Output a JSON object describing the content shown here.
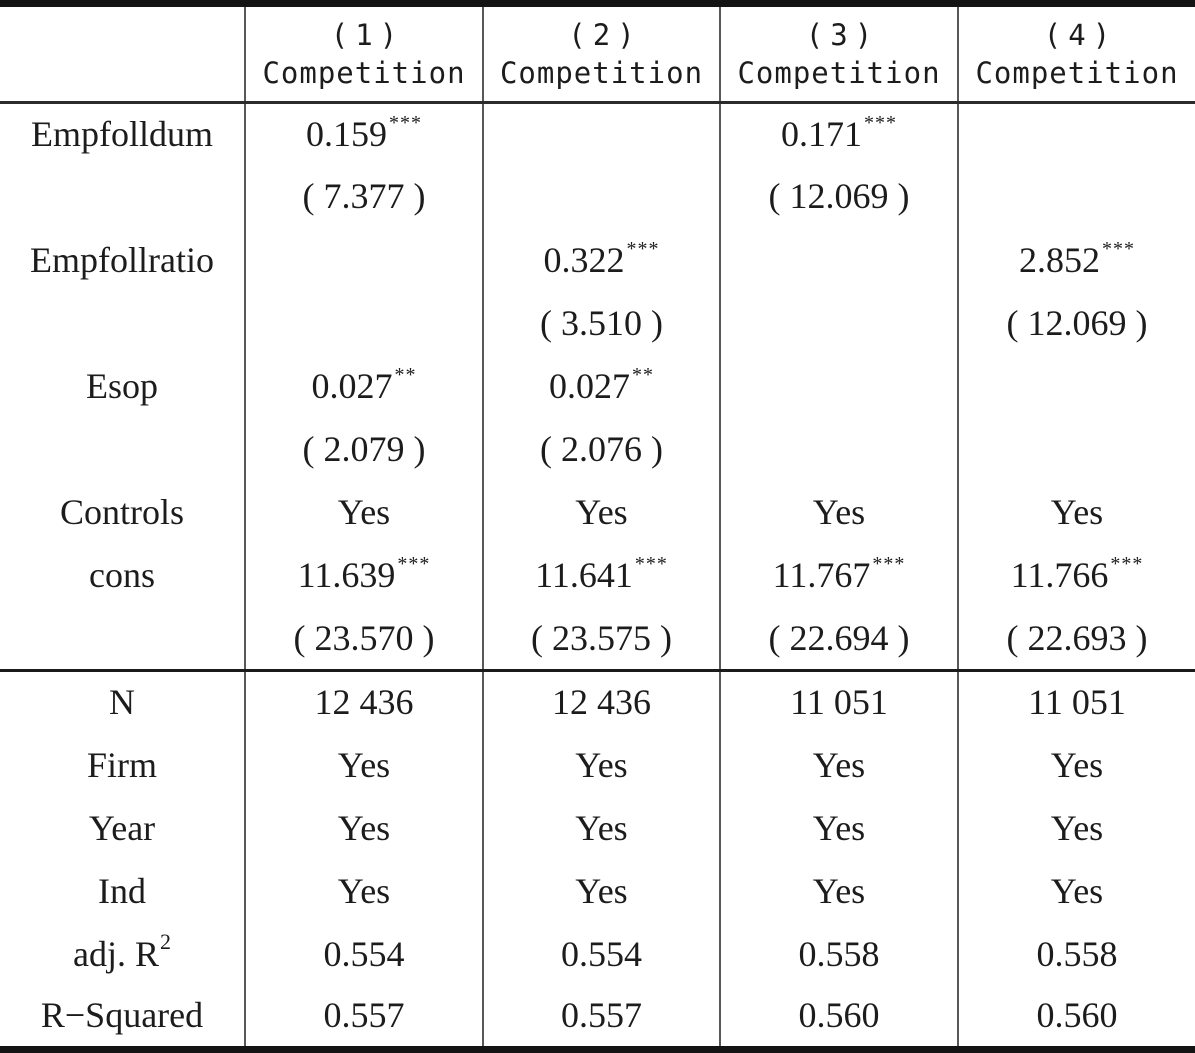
{
  "colors": {
    "ink": "#1c1c1c",
    "grid_vertical": "#585858",
    "rule_thick": "#141414",
    "rule_thin": "#2b2b2b"
  },
  "table": {
    "columns": [
      {
        "num": "(1)",
        "label": "Competition"
      },
      {
        "num": "(2)",
        "label": "Competition"
      },
      {
        "num": "(3)",
        "label": "Competition"
      },
      {
        "num": "(4)",
        "label": "Competition"
      }
    ],
    "rows": [
      {
        "label": "Empfolldum",
        "cells": [
          {
            "v": "0.159",
            "sup": "***"
          },
          {
            "v": ""
          },
          {
            "v": "0.171",
            "sup": "***"
          },
          {
            "v": ""
          }
        ]
      },
      {
        "label": "",
        "cells": [
          {
            "v": "( 7.377 )"
          },
          {
            "v": ""
          },
          {
            "v": "( 12.069 )"
          },
          {
            "v": ""
          }
        ]
      },
      {
        "label": "Empfollratio",
        "cells": [
          {
            "v": ""
          },
          {
            "v": "0.322",
            "sup": "***"
          },
          {
            "v": ""
          },
          {
            "v": "2.852",
            "sup": "***"
          }
        ]
      },
      {
        "label": "",
        "cells": [
          {
            "v": ""
          },
          {
            "v": "( 3.510 )"
          },
          {
            "v": ""
          },
          {
            "v": "( 12.069 )"
          }
        ]
      },
      {
        "label": "Esop",
        "cells": [
          {
            "v": "0.027",
            "sup": "**"
          },
          {
            "v": "0.027",
            "sup": "**"
          },
          {
            "v": ""
          },
          {
            "v": ""
          }
        ]
      },
      {
        "label": "",
        "cells": [
          {
            "v": "( 2.079 )"
          },
          {
            "v": "( 2.076 )"
          },
          {
            "v": ""
          },
          {
            "v": ""
          }
        ]
      },
      {
        "label": "Controls",
        "cells": [
          {
            "v": "Yes"
          },
          {
            "v": "Yes"
          },
          {
            "v": "Yes"
          },
          {
            "v": "Yes"
          }
        ]
      },
      {
        "label": "cons",
        "cells": [
          {
            "v": "11.639",
            "sup": "***"
          },
          {
            "v": "11.641",
            "sup": "***"
          },
          {
            "v": "11.767",
            "sup": "***"
          },
          {
            "v": "11.766",
            "sup": "***"
          }
        ]
      },
      {
        "label": "",
        "cells": [
          {
            "v": "( 23.570 )"
          },
          {
            "v": "( 23.575 )"
          },
          {
            "v": "( 22.694 )"
          },
          {
            "v": "( 22.693 )"
          }
        ]
      },
      {
        "label": "N",
        "section_start": true,
        "cells": [
          {
            "v": "12 436"
          },
          {
            "v": "12 436"
          },
          {
            "v": "11 051"
          },
          {
            "v": "11 051"
          }
        ]
      },
      {
        "label": "Firm",
        "cells": [
          {
            "v": "Yes"
          },
          {
            "v": "Yes"
          },
          {
            "v": "Yes"
          },
          {
            "v": "Yes"
          }
        ]
      },
      {
        "label": "Year",
        "cells": [
          {
            "v": "Yes"
          },
          {
            "v": "Yes"
          },
          {
            "v": "Yes"
          },
          {
            "v": "Yes"
          }
        ]
      },
      {
        "label": "Ind",
        "cells": [
          {
            "v": "Yes"
          },
          {
            "v": "Yes"
          },
          {
            "v": "Yes"
          },
          {
            "v": "Yes"
          }
        ]
      },
      {
        "label": "adj. R",
        "label_sup": "2",
        "cells": [
          {
            "v": "0.554"
          },
          {
            "v": "0.554"
          },
          {
            "v": "0.558"
          },
          {
            "v": "0.558"
          }
        ]
      },
      {
        "label": "R−Squared",
        "cells": [
          {
            "v": "0.557"
          },
          {
            "v": "0.557"
          },
          {
            "v": "0.560"
          },
          {
            "v": "0.560"
          }
        ]
      }
    ]
  }
}
